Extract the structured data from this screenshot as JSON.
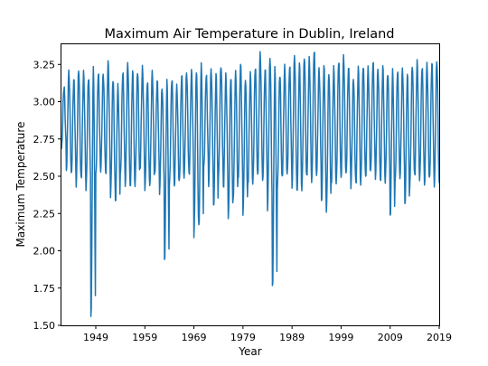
{
  "chart_data": {
    "type": "line",
    "title": "Maximum Air Temperature in Dublin, Ireland",
    "xlabel": "Year",
    "ylabel": "Maximum Temperature",
    "xlim": [
      1942.0,
      2019.0
    ],
    "ylim": [
      1.5,
      3.385
    ],
    "x_ticks": [
      1949,
      1959,
      1969,
      1979,
      1989,
      1999,
      2009,
      2019
    ],
    "x_tick_labels": [
      "1949",
      "1959",
      "1969",
      "1979",
      "1989",
      "1999",
      "2009",
      "2019"
    ],
    "y_ticks": [
      1.5,
      1.75,
      2.0,
      2.25,
      2.5,
      2.75,
      3.0,
      3.25
    ],
    "y_tick_labels": [
      "1.50",
      "1.75",
      "2.00",
      "2.25",
      "2.50",
      "2.75",
      "3.00",
      "3.25"
    ],
    "grid": false,
    "legend": "none",
    "series": [
      {
        "color": "#1f77b4",
        "frequency": "monthly",
        "x_start": 1942.0,
        "x_step": 0.08333,
        "annual_peaks": [
          3.1,
          3.2,
          3.15,
          3.22,
          3.19,
          3.17,
          3.22,
          3.19,
          3.19,
          3.26,
          3.16,
          3.1,
          3.2,
          3.26,
          3.2,
          3.21,
          3.22,
          3.14,
          3.2,
          3.14,
          3.1,
          3.13,
          3.16,
          3.1,
          3.18,
          3.2,
          3.2,
          3.22,
          3.24,
          3.18,
          3.22,
          3.18,
          3.25,
          3.17,
          3.17,
          3.2,
          3.25,
          3.16,
          3.18,
          3.24,
          3.32,
          3.22,
          3.3,
          3.22,
          3.19,
          3.23,
          3.24,
          3.31,
          3.25,
          3.31,
          3.28,
          3.35,
          3.22,
          3.24,
          3.2,
          3.22,
          3.28,
          3.3,
          3.23,
          3.16,
          3.22,
          3.25,
          3.22,
          3.27,
          3.22,
          3.23,
          3.2,
          3.2,
          3.21,
          3.22,
          3.18,
          3.25,
          3.26,
          3.24,
          3.25,
          3.26,
          3.28,
          3.28
        ],
        "annual_troughs": [
          2.68,
          2.55,
          2.5,
          2.45,
          2.48,
          2.41,
          1.56,
          2.5,
          2.55,
          2.5,
          2.37,
          2.33,
          2.5,
          2.45,
          2.41,
          2.45,
          2.55,
          2.4,
          2.45,
          2.5,
          2.4,
          1.92,
          2.44,
          2.44,
          2.45,
          2.51,
          2.5,
          2.1,
          2.17,
          2.55,
          2.45,
          2.28,
          2.5,
          2.42,
          2.21,
          2.36,
          2.46,
          2.26,
          2.45,
          2.45,
          2.52,
          2.45,
          2.29,
          1.74,
          2.42,
          2.5,
          2.5,
          2.44,
          2.38,
          2.42,
          2.5,
          2.45,
          2.52,
          2.31,
          2.28,
          2.45,
          2.45,
          2.5,
          2.5,
          2.44,
          2.44,
          2.45,
          2.5,
          2.52,
          2.5,
          2.45,
          2.47,
          2.23,
          2.45,
          2.5,
          2.29,
          2.45,
          2.5,
          2.47,
          2.45,
          2.47,
          2.45,
          2.43
        ]
      }
    ]
  }
}
